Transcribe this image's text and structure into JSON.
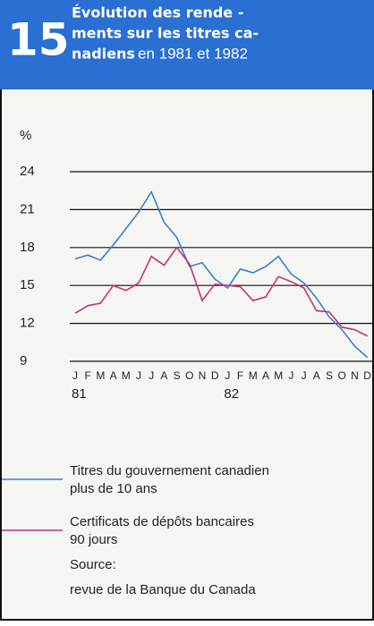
{
  "header": {
    "number": "15",
    "title": {
      "lines": [
        "Évolution des rende -",
        "ments sur les titres ca-",
        "nadiens"
      ],
      "tail": "en 1981 et 1982"
    }
  },
  "chart_data": {
    "type": "line",
    "y_label": "%",
    "categories": [
      "J",
      "F",
      "M",
      "A",
      "M",
      "J",
      "J",
      "A",
      "S",
      "O",
      "N",
      "D",
      "J",
      "F",
      "M",
      "A",
      "M",
      "J",
      "J",
      "A",
      "S",
      "O",
      "N",
      "D"
    ],
    "years": [
      {
        "index": 0,
        "label": "81"
      },
      {
        "index": 12,
        "label": "82"
      }
    ],
    "ylim": [
      9,
      24
    ],
    "yticks": [
      9,
      12,
      15,
      18,
      21,
      24
    ],
    "grid": true,
    "series": [
      {
        "name": "Titres du gouvernement canadien\nplus de 10 ans",
        "color": "#3a7fd0",
        "values": [
          17.1,
          17.4,
          17.0,
          18.2,
          19.5,
          20.8,
          22.4,
          20.0,
          18.8,
          16.5,
          16.8,
          15.5,
          14.8,
          16.3,
          16.0,
          16.5,
          17.3,
          15.9,
          15.2,
          14.0,
          12.5,
          11.5,
          10.2,
          9.3
        ]
      },
      {
        "name": "Certificats de dépôts bancaires\n90  jours",
        "color": "#c8326e",
        "values": [
          12.8,
          13.4,
          13.6,
          15.0,
          14.6,
          15.2,
          17.3,
          16.6,
          18.0,
          16.7,
          13.8,
          15.1,
          15.0,
          14.9,
          13.8,
          14.1,
          15.7,
          15.3,
          14.8,
          13.0,
          12.9,
          11.7,
          11.5,
          11.0
        ]
      }
    ]
  },
  "source": [
    "Source:",
    "revue de la Banque du Canada"
  ]
}
